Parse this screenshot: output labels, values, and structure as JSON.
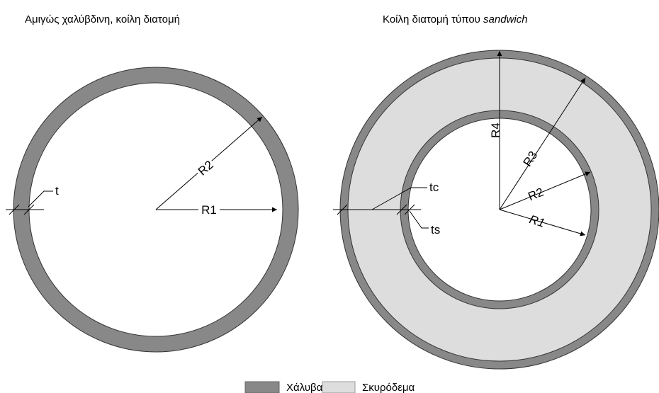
{
  "left": {
    "title": "Αμιγώς χαλύβδινη, κοίλη διατομή",
    "labels": {
      "r1": "R1",
      "r2": "R2",
      "t": "t"
    }
  },
  "right": {
    "title": "Κοίλη διατομή τύπου ",
    "title_italic": "sandwich",
    "labels": {
      "r1": "R1",
      "r2": "R2",
      "r3": "R3",
      "r4": "R4",
      "tc": "tc",
      "ts": "ts"
    }
  },
  "legend": {
    "steel": "Χάλυβας",
    "concrete": "Σκυρόδεμα"
  }
}
